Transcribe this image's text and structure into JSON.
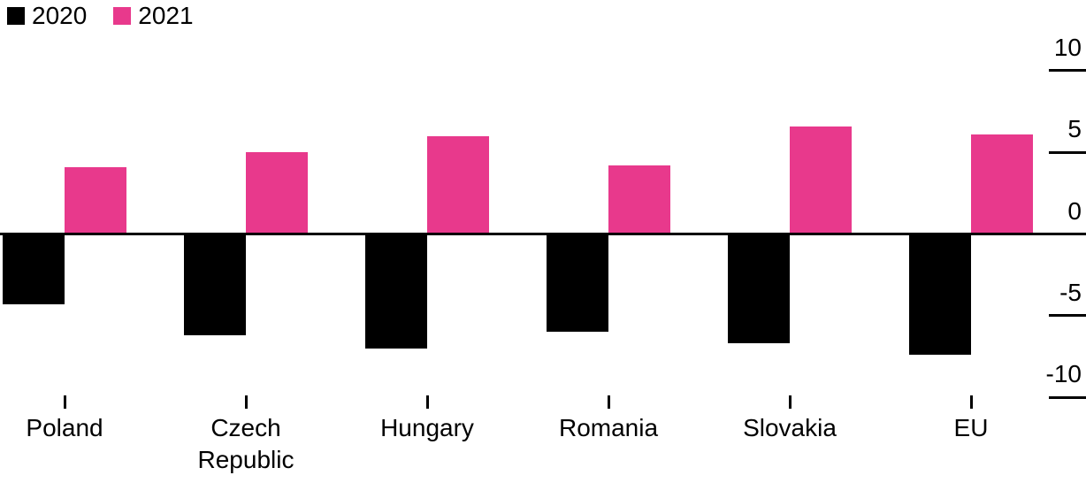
{
  "chart_data": {
    "type": "bar",
    "title": "",
    "categories": [
      "Poland",
      "Czech Republic",
      "Hungary",
      "Romania",
      "Slovakia",
      "EU"
    ],
    "series": [
      {
        "name": "2020",
        "color": "#000000",
        "values": [
          -4.3,
          -6.2,
          -7.0,
          -6.0,
          -6.7,
          -7.4
        ]
      },
      {
        "name": "2021",
        "color": "#E8398C",
        "values": [
          4.1,
          5.0,
          6.0,
          4.2,
          6.6,
          6.1
        ]
      }
    ],
    "yticks": [
      10,
      5,
      0,
      -5,
      -10
    ],
    "ylim": [
      -10,
      10
    ],
    "grid": false,
    "legend_position": "top-left",
    "y_axis_side": "right",
    "zero_baseline_full_width": true
  },
  "colors": {
    "background": "#FFFFFF",
    "axis": "#000000",
    "text": "#000000",
    "series_2020": "#000000",
    "series_2021": "#E8398C"
  }
}
